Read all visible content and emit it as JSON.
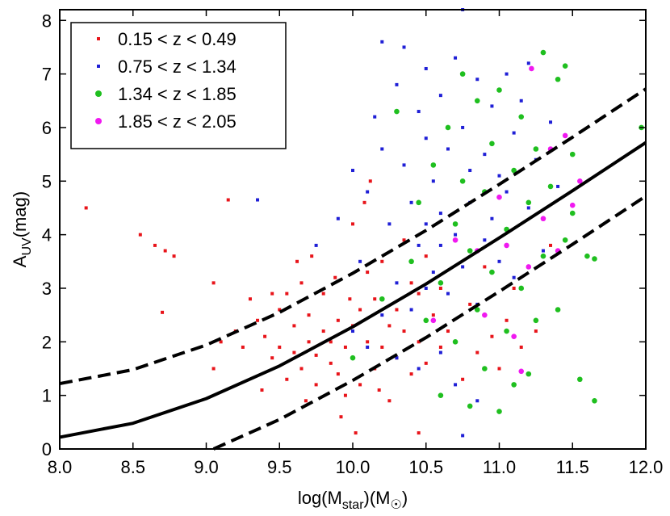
{
  "chart_data": {
    "type": "scatter",
    "xlabel": "log(M_star)(M_☉)",
    "ylabel": "A_UV(mag)",
    "xlim": [
      8.0,
      12.0
    ],
    "ylim": [
      0,
      8.2
    ],
    "x_ticks": [
      "8.0",
      "8.5",
      "9.0",
      "9.5",
      "10.0",
      "10.5",
      "11.0",
      "11.5",
      "12.0"
    ],
    "y_ticks": [
      "0",
      "1",
      "2",
      "3",
      "4",
      "5",
      "6",
      "7",
      "8"
    ],
    "grid": false,
    "legend_position": "top-left",
    "series": [
      {
        "name": "0.15 < z < 0.49",
        "color": "#e8141a",
        "marker": "square",
        "points": [
          [
            8.18,
            4.5
          ],
          [
            8.55,
            4.0
          ],
          [
            8.65,
            3.8
          ],
          [
            8.72,
            3.7
          ],
          [
            8.78,
            3.6
          ],
          [
            8.7,
            2.55
          ],
          [
            9.05,
            3.1
          ],
          [
            9.15,
            4.65
          ],
          [
            9.1,
            2.0
          ],
          [
            9.05,
            1.5
          ],
          [
            9.2,
            2.2
          ],
          [
            9.25,
            1.9
          ],
          [
            9.3,
            2.8
          ],
          [
            9.35,
            2.4
          ],
          [
            9.4,
            2.1
          ],
          [
            9.45,
            1.7
          ],
          [
            9.5,
            1.9
          ],
          [
            9.5,
            2.6
          ],
          [
            9.55,
            1.3
          ],
          [
            9.55,
            2.9
          ],
          [
            9.6,
            1.8
          ],
          [
            9.6,
            2.3
          ],
          [
            9.65,
            1.5
          ],
          [
            9.65,
            3.1
          ],
          [
            9.7,
            2.0
          ],
          [
            9.7,
            2.5
          ],
          [
            9.75,
            1.2
          ],
          [
            9.75,
            1.75
          ],
          [
            9.8,
            2.2
          ],
          [
            9.8,
            2.9
          ],
          [
            9.85,
            1.6
          ],
          [
            9.85,
            2.0
          ],
          [
            9.9,
            1.4
          ],
          [
            9.9,
            2.4
          ],
          [
            9.95,
            1.0
          ],
          [
            9.95,
            1.9
          ],
          [
            10.0,
            2.3
          ],
          [
            10.0,
            1.7
          ],
          [
            10.05,
            2.6
          ],
          [
            10.05,
            1.2
          ],
          [
            10.1,
            2.0
          ],
          [
            10.1,
            3.3
          ],
          [
            10.15,
            1.5
          ],
          [
            10.15,
            2.8
          ],
          [
            10.2,
            1.9
          ],
          [
            10.2,
            3.5
          ],
          [
            10.25,
            2.3
          ],
          [
            10.25,
            0.9
          ],
          [
            10.3,
            2.6
          ],
          [
            10.3,
            1.7
          ],
          [
            10.35,
            3.9
          ],
          [
            10.35,
            2.2
          ],
          [
            10.4,
            1.4
          ],
          [
            10.4,
            3.1
          ],
          [
            10.45,
            2.0
          ],
          [
            10.45,
            2.9
          ],
          [
            10.5,
            1.6
          ],
          [
            10.5,
            3.6
          ],
          [
            10.55,
            2.5
          ],
          [
            10.6,
            1.9
          ],
          [
            10.6,
            3.0
          ],
          [
            10.65,
            2.2
          ],
          [
            10.7,
            4.2
          ],
          [
            10.75,
            1.3
          ],
          [
            10.8,
            2.7
          ],
          [
            10.85,
            1.8
          ],
          [
            10.9,
            3.4
          ],
          [
            10.95,
            2.1
          ],
          [
            11.0,
            1.5
          ],
          [
            11.05,
            2.4
          ],
          [
            11.1,
            3.0
          ],
          [
            11.15,
            1.9
          ],
          [
            11.25,
            2.2
          ],
          [
            11.35,
            3.8
          ],
          [
            9.62,
            3.5
          ],
          [
            9.72,
            3.6
          ],
          [
            10.0,
            4.2
          ],
          [
            10.08,
            4.6
          ],
          [
            10.12,
            5.0
          ],
          [
            10.02,
            0.3
          ],
          [
            10.45,
            0.3
          ],
          [
            9.92,
            0.6
          ],
          [
            9.68,
            0.9
          ],
          [
            9.45,
            2.9
          ],
          [
            9.38,
            1.1
          ],
          [
            9.88,
            3.2
          ],
          [
            9.98,
            2.8
          ],
          [
            10.18,
            1.1
          ]
        ]
      },
      {
        "name": "0.75 < z < 1.34",
        "color": "#1f1fd6",
        "marker": "square",
        "points": [
          [
            9.35,
            4.65
          ],
          [
            9.75,
            3.8
          ],
          [
            9.9,
            4.3
          ],
          [
            10.0,
            5.2
          ],
          [
            10.05,
            3.5
          ],
          [
            10.1,
            4.8
          ],
          [
            10.15,
            6.2
          ],
          [
            10.2,
            5.6
          ],
          [
            10.2,
            7.6
          ],
          [
            10.25,
            4.2
          ],
          [
            10.3,
            6.8
          ],
          [
            10.3,
            3.1
          ],
          [
            10.35,
            5.3
          ],
          [
            10.35,
            7.5
          ],
          [
            10.4,
            4.6
          ],
          [
            10.4,
            2.6
          ],
          [
            10.45,
            6.3
          ],
          [
            10.45,
            3.8
          ],
          [
            10.5,
            5.8
          ],
          [
            10.5,
            4.2
          ],
          [
            10.5,
            7.1
          ],
          [
            10.55,
            3.3
          ],
          [
            10.55,
            5.0
          ],
          [
            10.6,
            6.6
          ],
          [
            10.6,
            4.4
          ],
          [
            10.65,
            2.9
          ],
          [
            10.65,
            5.6
          ],
          [
            10.7,
            7.3
          ],
          [
            10.7,
            4.0
          ],
          [
            10.75,
            6.0
          ],
          [
            10.75,
            3.4
          ],
          [
            10.75,
            8.2
          ],
          [
            10.8,
            5.2
          ],
          [
            10.8,
            4.6
          ],
          [
            10.85,
            6.9
          ],
          [
            10.85,
            2.7
          ],
          [
            10.9,
            5.5
          ],
          [
            10.9,
            3.9
          ],
          [
            10.95,
            6.4
          ],
          [
            10.95,
            4.3
          ],
          [
            11.0,
            5.1
          ],
          [
            11.0,
            3.5
          ],
          [
            11.05,
            7.0
          ],
          [
            11.05,
            4.8
          ],
          [
            11.1,
            5.9
          ],
          [
            11.1,
            3.2
          ],
          [
            11.15,
            6.5
          ],
          [
            11.2,
            4.5
          ],
          [
            11.2,
            7.2
          ],
          [
            11.25,
            5.4
          ],
          [
            11.3,
            3.7
          ],
          [
            11.35,
            6.1
          ],
          [
            11.4,
            4.9
          ],
          [
            10.0,
            2.2
          ],
          [
            10.1,
            1.9
          ],
          [
            10.2,
            2.5
          ],
          [
            10.3,
            1.7
          ],
          [
            10.45,
            1.5
          ],
          [
            10.6,
            1.8
          ],
          [
            10.7,
            1.2
          ],
          [
            10.75,
            0.25
          ],
          [
            10.85,
            0.9
          ],
          [
            10.5,
            3.0
          ],
          [
            10.6,
            3.8
          ]
        ]
      },
      {
        "name": "1.34 < z < 1.85",
        "color": "#1fbf1f",
        "marker": "circle",
        "points": [
          [
            10.0,
            1.7
          ],
          [
            10.2,
            2.8
          ],
          [
            10.3,
            6.3
          ],
          [
            10.4,
            3.5
          ],
          [
            10.45,
            4.6
          ],
          [
            10.5,
            2.4
          ],
          [
            10.55,
            5.3
          ],
          [
            10.6,
            3.1
          ],
          [
            10.6,
            1.0
          ],
          [
            10.65,
            6.0
          ],
          [
            10.7,
            4.2
          ],
          [
            10.7,
            2.0
          ],
          [
            10.75,
            5.0
          ],
          [
            10.75,
            7.0
          ],
          [
            10.8,
            3.7
          ],
          [
            10.8,
            0.8
          ],
          [
            10.85,
            6.5
          ],
          [
            10.85,
            2.6
          ],
          [
            10.9,
            4.8
          ],
          [
            10.9,
            1.5
          ],
          [
            10.95,
            5.7
          ],
          [
            10.95,
            3.3
          ],
          [
            11.0,
            6.7
          ],
          [
            11.0,
            0.7
          ],
          [
            11.05,
            4.1
          ],
          [
            11.05,
            2.2
          ],
          [
            11.1,
            5.2
          ],
          [
            11.1,
            1.2
          ],
          [
            11.15,
            6.2
          ],
          [
            11.15,
            3.0
          ],
          [
            11.2,
            4.6
          ],
          [
            11.2,
            1.4
          ],
          [
            11.25,
            5.6
          ],
          [
            11.25,
            2.4
          ],
          [
            11.3,
            7.4
          ],
          [
            11.3,
            3.6
          ],
          [
            11.35,
            4.9
          ],
          [
            11.4,
            6.9
          ],
          [
            11.4,
            2.6
          ],
          [
            11.45,
            3.9
          ],
          [
            11.45,
            7.15
          ],
          [
            11.5,
            4.4
          ],
          [
            11.55,
            1.3
          ],
          [
            11.6,
            3.6
          ],
          [
            11.65,
            0.9
          ],
          [
            11.97,
            6.0
          ],
          [
            11.65,
            3.55
          ],
          [
            11.5,
            5.5
          ]
        ]
      },
      {
        "name": "1.85 < z < 2.05",
        "color": "#f019f0",
        "marker": "circle",
        "points": [
          [
            10.55,
            2.4
          ],
          [
            10.7,
            3.9
          ],
          [
            10.85,
            3.7
          ],
          [
            10.9,
            2.5
          ],
          [
            11.0,
            4.7
          ],
          [
            11.05,
            3.8
          ],
          [
            11.1,
            2.1
          ],
          [
            11.15,
            1.45
          ],
          [
            11.2,
            3.4
          ],
          [
            11.22,
            7.1
          ],
          [
            11.3,
            4.3
          ],
          [
            11.35,
            5.6
          ],
          [
            11.4,
            3.7
          ],
          [
            11.45,
            5.85
          ],
          [
            11.5,
            4.55
          ],
          [
            11.55,
            5.0
          ]
        ]
      }
    ],
    "lines": [
      {
        "style": "solid",
        "x": [
          8.0,
          8.5,
          9.0,
          9.5,
          10.0,
          10.5,
          11.0,
          11.5,
          12.0
        ],
        "y": [
          0.22,
          0.48,
          0.94,
          1.55,
          2.28,
          3.08,
          3.94,
          4.82,
          5.72
        ]
      },
      {
        "style": "dashed",
        "x": [
          8.0,
          8.5,
          9.0,
          9.5,
          10.0,
          10.5,
          11.0,
          11.5,
          12.0
        ],
        "y": [
          1.22,
          1.48,
          1.94,
          2.55,
          3.28,
          4.08,
          4.94,
          5.82,
          6.72
        ]
      },
      {
        "style": "dashed",
        "x": [
          9.05,
          9.5,
          10.0,
          10.5,
          11.0,
          11.5,
          12.0
        ],
        "y": [
          0.0,
          0.55,
          1.28,
          2.08,
          2.94,
          3.82,
          4.72
        ]
      }
    ]
  }
}
